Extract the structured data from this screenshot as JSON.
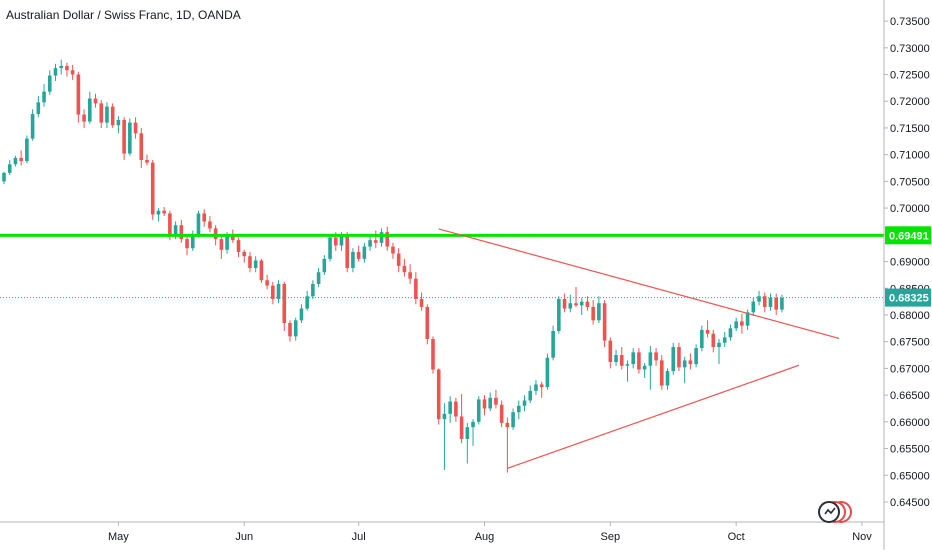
{
  "title": "Australian Dollar / Swiss Franc, 1D, OANDA",
  "colors": {
    "up": "#26a69a",
    "down": "#ef5350",
    "hline": "#00e600",
    "trendline": "#ef5350",
    "price_line": "#26a69a",
    "axis_text": "#131722",
    "grid": "#f0f3fa"
  },
  "icons": {
    "watermark": "tradingview-logo-icon"
  },
  "chart_data": {
    "type": "candlestick",
    "symbol": "AUDCHF",
    "interval": "1D",
    "source": "OANDA",
    "grid": false,
    "ylim": [
      0.6435,
      0.7367
    ],
    "y_ticks": [
      "0.73500",
      "0.73000",
      "0.72500",
      "0.72000",
      "0.71500",
      "0.71000",
      "0.70500",
      "0.70000",
      "0.69500",
      "0.69000",
      "0.68500",
      "0.68000",
      "0.67500",
      "0.67000",
      "0.66500",
      "0.66000",
      "0.65500",
      "0.65000",
      "0.64500"
    ],
    "x_labels": [
      "May",
      "Jun",
      "Jul",
      "Aug",
      "Sep",
      "Oct",
      "Nov"
    ],
    "x_label_bars": [
      20,
      42,
      62,
      84,
      106,
      128,
      150
    ],
    "last_price": "0.68325",
    "horizontal_line_label": "0.69491",
    "horizontal_line": 0.6949,
    "trendlines": [
      {
        "from": [
          76,
          0.6961
        ],
        "to": [
          146,
          0.6756
        ]
      },
      {
        "from": [
          88,
          0.6513
        ],
        "to": [
          139,
          0.6706
        ]
      }
    ],
    "candles": [
      [
        0.705,
        0.7068,
        0.7045,
        0.7066
      ],
      [
        0.7066,
        0.709,
        0.7062,
        0.7082
      ],
      [
        0.7082,
        0.7098,
        0.7078,
        0.7094
      ],
      [
        0.7094,
        0.7108,
        0.708,
        0.7088
      ],
      [
        0.7088,
        0.7136,
        0.7084,
        0.713
      ],
      [
        0.713,
        0.7185,
        0.7126,
        0.7176
      ],
      [
        0.7176,
        0.721,
        0.717,
        0.7198
      ],
      [
        0.7198,
        0.7232,
        0.719,
        0.7218
      ],
      [
        0.7218,
        0.7258,
        0.7212,
        0.7248
      ],
      [
        0.7248,
        0.727,
        0.7238,
        0.7262
      ],
      [
        0.7262,
        0.7278,
        0.725,
        0.7266
      ],
      [
        0.7266,
        0.7272,
        0.7246,
        0.7258
      ],
      [
        0.7258,
        0.7268,
        0.724,
        0.725
      ],
      [
        0.725,
        0.7255,
        0.716,
        0.7175
      ],
      [
        0.7175,
        0.7185,
        0.715,
        0.7162
      ],
      [
        0.7162,
        0.7218,
        0.7158,
        0.7205
      ],
      [
        0.7205,
        0.7214,
        0.7188,
        0.7196
      ],
      [
        0.7196,
        0.7202,
        0.715,
        0.716
      ],
      [
        0.716,
        0.7198,
        0.715,
        0.719
      ],
      [
        0.719,
        0.7196,
        0.715,
        0.7155
      ],
      [
        0.7155,
        0.7172,
        0.714,
        0.7165
      ],
      [
        0.7165,
        0.717,
        0.709,
        0.7102
      ],
      [
        0.7102,
        0.7168,
        0.7098,
        0.716
      ],
      [
        0.716,
        0.717,
        0.713,
        0.714
      ],
      [
        0.714,
        0.715,
        0.7075,
        0.709
      ],
      [
        0.709,
        0.71,
        0.708,
        0.7085
      ],
      [
        0.7085,
        0.709,
        0.6978,
        0.6988
      ],
      [
        0.6988,
        0.7,
        0.6975,
        0.6995
      ],
      [
        0.6995,
        0.7002,
        0.6985,
        0.699
      ],
      [
        0.699,
        0.6995,
        0.694,
        0.695
      ],
      [
        0.695,
        0.6975,
        0.6942,
        0.6968
      ],
      [
        0.6968,
        0.6978,
        0.6935,
        0.6942
      ],
      [
        0.6942,
        0.695,
        0.6912,
        0.6925
      ],
      [
        0.6925,
        0.6958,
        0.692,
        0.695
      ],
      [
        0.695,
        0.6995,
        0.6945,
        0.699
      ],
      [
        0.699,
        0.6998,
        0.6965,
        0.6975
      ],
      [
        0.6975,
        0.6985,
        0.6955,
        0.6962
      ],
      [
        0.6962,
        0.6968,
        0.693,
        0.6942
      ],
      [
        0.6942,
        0.695,
        0.6905,
        0.6922
      ],
      [
        0.6922,
        0.6955,
        0.6915,
        0.6948
      ],
      [
        0.6948,
        0.696,
        0.6935,
        0.694
      ],
      [
        0.694,
        0.6945,
        0.6908,
        0.6918
      ],
      [
        0.6918,
        0.6922,
        0.6898,
        0.691
      ],
      [
        0.691,
        0.6918,
        0.688,
        0.6888
      ],
      [
        0.6888,
        0.691,
        0.688,
        0.6902
      ],
      [
        0.6902,
        0.6905,
        0.686,
        0.6865
      ],
      [
        0.6865,
        0.6875,
        0.6848,
        0.6855
      ],
      [
        0.6855,
        0.6862,
        0.682,
        0.683
      ],
      [
        0.683,
        0.6865,
        0.6822,
        0.6858
      ],
      [
        0.6858,
        0.6862,
        0.677,
        0.6785
      ],
      [
        0.6785,
        0.679,
        0.675,
        0.676
      ],
      [
        0.676,
        0.6795,
        0.6752,
        0.679
      ],
      [
        0.679,
        0.682,
        0.6785,
        0.6812
      ],
      [
        0.6812,
        0.6845,
        0.6808,
        0.6835
      ],
      [
        0.6835,
        0.6865,
        0.683,
        0.6858
      ],
      [
        0.6858,
        0.6888,
        0.6852,
        0.688
      ],
      [
        0.688,
        0.6912,
        0.6875,
        0.6905
      ],
      [
        0.6905,
        0.6952,
        0.69,
        0.6945
      ],
      [
        0.6945,
        0.6955,
        0.692,
        0.693
      ],
      [
        0.693,
        0.6955,
        0.692,
        0.6948
      ],
      [
        0.6948,
        0.6955,
        0.688,
        0.6888
      ],
      [
        0.6888,
        0.6925,
        0.688,
        0.6918
      ],
      [
        0.6918,
        0.693,
        0.69,
        0.6905
      ],
      [
        0.6905,
        0.6935,
        0.6898,
        0.6928
      ],
      [
        0.6928,
        0.6948,
        0.692,
        0.694
      ],
      [
        0.694,
        0.6958,
        0.6925,
        0.6935
      ],
      [
        0.6935,
        0.6962,
        0.6928,
        0.6955
      ],
      [
        0.6955,
        0.6965,
        0.692,
        0.6928
      ],
      [
        0.6928,
        0.6935,
        0.6905,
        0.6915
      ],
      [
        0.6915,
        0.6925,
        0.688,
        0.6892
      ],
      [
        0.6892,
        0.6905,
        0.6872,
        0.688
      ],
      [
        0.688,
        0.6895,
        0.6858,
        0.6868
      ],
      [
        0.6868,
        0.688,
        0.682,
        0.683
      ],
      [
        0.683,
        0.6842,
        0.6808,
        0.6815
      ],
      [
        0.6815,
        0.682,
        0.6745,
        0.6755
      ],
      [
        0.6755,
        0.676,
        0.669,
        0.6698
      ],
      [
        0.6698,
        0.67,
        0.6595,
        0.6605
      ],
      [
        0.6605,
        0.6635,
        0.651,
        0.6615
      ],
      [
        0.6615,
        0.6648,
        0.6598,
        0.6638
      ],
      [
        0.6638,
        0.6645,
        0.66,
        0.661
      ],
      [
        0.661,
        0.6652,
        0.656,
        0.6568
      ],
      [
        0.6568,
        0.6598,
        0.6522,
        0.659
      ],
      [
        0.659,
        0.6605,
        0.6555,
        0.66
      ],
      [
        0.66,
        0.6648,
        0.6595,
        0.6642
      ],
      [
        0.6642,
        0.665,
        0.6612,
        0.6625
      ],
      [
        0.6625,
        0.6655,
        0.662,
        0.6645
      ],
      [
        0.6645,
        0.666,
        0.6625,
        0.6632
      ],
      [
        0.6632,
        0.664,
        0.659,
        0.6598
      ],
      [
        0.6598,
        0.6608,
        0.6505,
        0.659
      ],
      [
        0.659,
        0.6625,
        0.6585,
        0.6618
      ],
      [
        0.6618,
        0.664,
        0.6605,
        0.663
      ],
      [
        0.663,
        0.665,
        0.662,
        0.664
      ],
      [
        0.664,
        0.6668,
        0.6635,
        0.6658
      ],
      [
        0.6658,
        0.6678,
        0.665,
        0.667
      ],
      [
        0.667,
        0.6675,
        0.6645,
        0.6665
      ],
      [
        0.6665,
        0.6728,
        0.666,
        0.672
      ],
      [
        0.672,
        0.678,
        0.6715,
        0.677
      ],
      [
        0.677,
        0.6835,
        0.6765,
        0.683
      ],
      [
        0.683,
        0.684,
        0.6805,
        0.6812
      ],
      [
        0.6812,
        0.6838,
        0.6805,
        0.6822
      ],
      [
        0.6822,
        0.6852,
        0.6815,
        0.6818
      ],
      [
        0.6818,
        0.6832,
        0.68,
        0.6825
      ],
      [
        0.6825,
        0.6835,
        0.6808,
        0.6815
      ],
      [
        0.6815,
        0.6828,
        0.6782,
        0.679
      ],
      [
        0.679,
        0.6835,
        0.6785,
        0.6822
      ],
      [
        0.6822,
        0.6828,
        0.674,
        0.6752
      ],
      [
        0.6752,
        0.6758,
        0.67,
        0.6712
      ],
      [
        0.6712,
        0.6735,
        0.6705,
        0.6725
      ],
      [
        0.6725,
        0.674,
        0.6698,
        0.6705
      ],
      [
        0.6705,
        0.6715,
        0.6675,
        0.6708
      ],
      [
        0.6708,
        0.6738,
        0.67,
        0.673
      ],
      [
        0.673,
        0.6738,
        0.669,
        0.6698
      ],
      [
        0.6698,
        0.671,
        0.6682,
        0.6705
      ],
      [
        0.6705,
        0.6742,
        0.666,
        0.673
      ],
      [
        0.673,
        0.6738,
        0.6705,
        0.6715
      ],
      [
        0.6715,
        0.6725,
        0.666,
        0.6668
      ],
      [
        0.6668,
        0.67,
        0.666,
        0.6695
      ],
      [
        0.6695,
        0.6748,
        0.6688,
        0.674
      ],
      [
        0.674,
        0.6748,
        0.6695,
        0.6702
      ],
      [
        0.6702,
        0.6722,
        0.6672,
        0.6715
      ],
      [
        0.6715,
        0.6728,
        0.6698,
        0.6708
      ],
      [
        0.6708,
        0.6745,
        0.6702,
        0.6738
      ],
      [
        0.6738,
        0.678,
        0.6732,
        0.6772
      ],
      [
        0.6772,
        0.679,
        0.6758,
        0.6765
      ],
      [
        0.6765,
        0.6772,
        0.673,
        0.674
      ],
      [
        0.674,
        0.6755,
        0.6708,
        0.6748
      ],
      [
        0.6748,
        0.6768,
        0.674,
        0.6758
      ],
      [
        0.6758,
        0.6782,
        0.6752,
        0.6775
      ],
      [
        0.6775,
        0.6795,
        0.677,
        0.6788
      ],
      [
        0.6788,
        0.6802,
        0.6765,
        0.678
      ],
      [
        0.678,
        0.681,
        0.6772,
        0.6805
      ],
      [
        0.6805,
        0.6832,
        0.6798,
        0.6825
      ],
      [
        0.6825,
        0.6845,
        0.6818,
        0.6835
      ],
      [
        0.6835,
        0.6842,
        0.6805,
        0.6815
      ],
      [
        0.6815,
        0.684,
        0.6808,
        0.6832
      ],
      [
        0.6832,
        0.684,
        0.68,
        0.681
      ],
      [
        0.681,
        0.6838,
        0.6805,
        0.6832
      ]
    ]
  }
}
